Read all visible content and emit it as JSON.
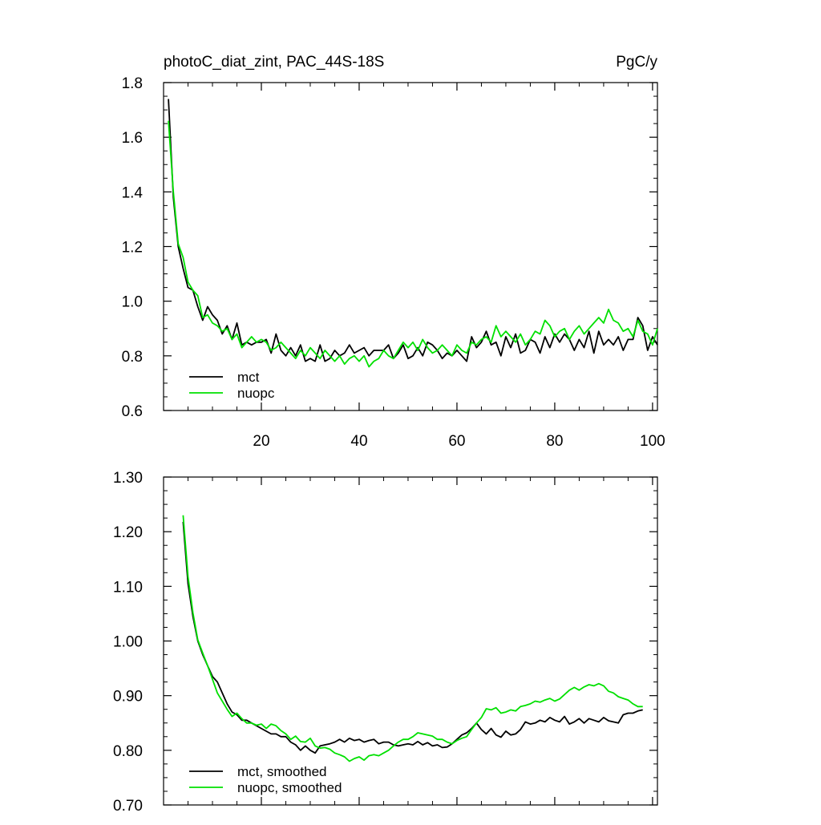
{
  "header": {
    "title": "photoC_diat_zint, PAC_44S-18S",
    "units": "PgC/y"
  },
  "colors": {
    "mct": "#000000",
    "nuopc": "#00e000"
  },
  "chart_data": [
    {
      "type": "line",
      "title": "photoC_diat_zint, PAC_44S-18S",
      "units": "PgC/y",
      "xlim": [
        0,
        101
      ],
      "ylim": [
        0.6,
        1.8
      ],
      "xticks": [
        20,
        40,
        60,
        80,
        100
      ],
      "xtick_labels": [
        "20",
        "40",
        "60",
        "80",
        "100"
      ],
      "yticks": [
        0.6,
        0.8,
        1.0,
        1.2,
        1.4,
        1.6,
        1.8
      ],
      "ytick_labels": [
        "0.6",
        "0.8",
        "1.0",
        "1.2",
        "1.4",
        "1.6",
        "1.8"
      ],
      "legend_position": "bottom-left",
      "series": [
        {
          "name": "mct",
          "color": "#000000",
          "x": [
            1,
            2,
            3,
            4,
            5,
            6,
            7,
            8,
            9,
            10,
            11,
            12,
            13,
            14,
            15,
            16,
            17,
            18,
            19,
            20,
            21,
            22,
            23,
            24,
            25,
            26,
            27,
            28,
            29,
            30,
            31,
            32,
            33,
            34,
            35,
            36,
            37,
            38,
            39,
            40,
            41,
            42,
            43,
            44,
            45,
            46,
            47,
            48,
            49,
            50,
            51,
            52,
            53,
            54,
            55,
            56,
            57,
            58,
            59,
            60,
            61,
            62,
            63,
            64,
            65,
            66,
            67,
            68,
            69,
            70,
            71,
            72,
            73,
            74,
            75,
            76,
            77,
            78,
            79,
            80,
            81,
            82,
            83,
            84,
            85,
            86,
            87,
            88,
            89,
            90,
            91,
            92,
            93,
            94,
            95,
            96,
            97,
            98,
            99,
            100,
            101
          ],
          "values": [
            1.74,
            1.38,
            1.2,
            1.12,
            1.05,
            1.04,
            0.98,
            0.93,
            0.98,
            0.95,
            0.93,
            0.88,
            0.91,
            0.86,
            0.92,
            0.84,
            0.85,
            0.84,
            0.85,
            0.85,
            0.86,
            0.81,
            0.88,
            0.82,
            0.8,
            0.83,
            0.8,
            0.84,
            0.78,
            0.79,
            0.78,
            0.84,
            0.78,
            0.79,
            0.82,
            0.8,
            0.81,
            0.84,
            0.81,
            0.82,
            0.83,
            0.8,
            0.82,
            0.82,
            0.82,
            0.84,
            0.79,
            0.81,
            0.84,
            0.79,
            0.8,
            0.83,
            0.8,
            0.85,
            0.84,
            0.82,
            0.79,
            0.81,
            0.8,
            0.82,
            0.8,
            0.78,
            0.87,
            0.83,
            0.85,
            0.89,
            0.84,
            0.85,
            0.8,
            0.87,
            0.83,
            0.88,
            0.81,
            0.82,
            0.86,
            0.85,
            0.81,
            0.87,
            0.83,
            0.88,
            0.85,
            0.88,
            0.86,
            0.82,
            0.86,
            0.83,
            0.89,
            0.81,
            0.89,
            0.84,
            0.86,
            0.84,
            0.87,
            0.82,
            0.86,
            0.86,
            0.94,
            0.91,
            0.82,
            0.87,
            0.84
          ]
        },
        {
          "name": "nuopc",
          "color": "#00e000",
          "x": [
            1,
            2,
            3,
            4,
            5,
            6,
            7,
            8,
            9,
            10,
            11,
            12,
            13,
            14,
            15,
            16,
            17,
            18,
            19,
            20,
            21,
            22,
            23,
            24,
            25,
            26,
            27,
            28,
            29,
            30,
            31,
            32,
            33,
            34,
            35,
            36,
            37,
            38,
            39,
            40,
            41,
            42,
            43,
            44,
            45,
            46,
            47,
            48,
            49,
            50,
            51,
            52,
            53,
            54,
            55,
            56,
            57,
            58,
            59,
            60,
            61,
            62,
            63,
            64,
            65,
            66,
            67,
            68,
            69,
            70,
            71,
            72,
            73,
            74,
            75,
            76,
            77,
            78,
            79,
            80,
            81,
            82,
            83,
            84,
            85,
            86,
            87,
            88,
            89,
            90,
            91,
            92,
            93,
            94,
            95,
            96,
            97,
            98,
            99,
            100,
            101
          ],
          "values": [
            1.66,
            1.4,
            1.21,
            1.16,
            1.07,
            1.04,
            1.02,
            0.94,
            0.95,
            0.92,
            0.91,
            0.89,
            0.9,
            0.86,
            0.88,
            0.83,
            0.85,
            0.87,
            0.85,
            0.86,
            0.85,
            0.82,
            0.83,
            0.85,
            0.83,
            0.81,
            0.79,
            0.82,
            0.8,
            0.83,
            0.81,
            0.79,
            0.82,
            0.8,
            0.78,
            0.8,
            0.77,
            0.79,
            0.8,
            0.78,
            0.8,
            0.76,
            0.78,
            0.79,
            0.82,
            0.8,
            0.79,
            0.82,
            0.85,
            0.83,
            0.85,
            0.82,
            0.86,
            0.83,
            0.81,
            0.82,
            0.84,
            0.82,
            0.8,
            0.84,
            0.82,
            0.81,
            0.85,
            0.84,
            0.86,
            0.87,
            0.85,
            0.91,
            0.87,
            0.89,
            0.87,
            0.85,
            0.88,
            0.84,
            0.86,
            0.89,
            0.88,
            0.93,
            0.91,
            0.87,
            0.89,
            0.9,
            0.86,
            0.89,
            0.91,
            0.88,
            0.9,
            0.92,
            0.94,
            0.92,
            0.97,
            0.93,
            0.92,
            0.89,
            0.9,
            0.87,
            0.93,
            0.89,
            0.88,
            0.84,
            0.9
          ]
        }
      ]
    },
    {
      "type": "line",
      "title": "",
      "xlim": [
        0,
        101
      ],
      "ylim": [
        0.7,
        1.3
      ],
      "xticks": [
        20,
        40,
        60,
        80,
        100
      ],
      "xtick_labels": [],
      "yticks": [
        0.7,
        0.8,
        0.9,
        1.0,
        1.1,
        1.2,
        1.3
      ],
      "ytick_labels": [
        "0.70",
        "0.80",
        "0.90",
        "1.00",
        "1.10",
        "1.20",
        "1.30"
      ],
      "legend_position": "bottom-left",
      "series": [
        {
          "name": "mct, smoothed",
          "color": "#000000",
          "x": [
            4,
            5,
            6,
            7,
            8,
            9,
            10,
            11,
            12,
            13,
            14,
            15,
            16,
            17,
            18,
            19,
            20,
            21,
            22,
            23,
            24,
            25,
            26,
            27,
            28,
            29,
            30,
            31,
            32,
            33,
            34,
            35,
            36,
            37,
            38,
            39,
            40,
            41,
            42,
            43,
            44,
            45,
            46,
            47,
            48,
            49,
            50,
            51,
            52,
            53,
            54,
            55,
            56,
            57,
            58,
            59,
            60,
            61,
            62,
            63,
            64,
            65,
            66,
            67,
            68,
            69,
            70,
            71,
            72,
            73,
            74,
            75,
            76,
            77,
            78,
            79,
            80,
            81,
            82,
            83,
            84,
            85,
            86,
            87,
            88,
            89,
            90,
            91,
            92,
            93,
            94,
            95,
            96,
            97,
            98
          ],
          "values": [
            1.218,
            1.105,
            1.045,
            1.0,
            0.975,
            0.955,
            0.935,
            0.925,
            0.905,
            0.885,
            0.87,
            0.865,
            0.855,
            0.855,
            0.85,
            0.845,
            0.84,
            0.835,
            0.83,
            0.83,
            0.825,
            0.825,
            0.815,
            0.81,
            0.8,
            0.808,
            0.8,
            0.795,
            0.808,
            0.81,
            0.812,
            0.815,
            0.82,
            0.815,
            0.822,
            0.818,
            0.82,
            0.815,
            0.818,
            0.82,
            0.812,
            0.815,
            0.815,
            0.81,
            0.808,
            0.81,
            0.812,
            0.81,
            0.816,
            0.81,
            0.814,
            0.808,
            0.81,
            0.805,
            0.806,
            0.812,
            0.82,
            0.828,
            0.832,
            0.84,
            0.85,
            0.838,
            0.83,
            0.84,
            0.828,
            0.824,
            0.835,
            0.828,
            0.83,
            0.838,
            0.852,
            0.848,
            0.85,
            0.855,
            0.852,
            0.86,
            0.855,
            0.852,
            0.862,
            0.848,
            0.852,
            0.858,
            0.85,
            0.858,
            0.855,
            0.852,
            0.86,
            0.854,
            0.852,
            0.85,
            0.865,
            0.868,
            0.868,
            0.872,
            0.874
          ]
        },
        {
          "name": "nuopc, smoothed",
          "color": "#00e000",
          "x": [
            4,
            5,
            6,
            7,
            8,
            9,
            10,
            11,
            12,
            13,
            14,
            15,
            16,
            17,
            18,
            19,
            20,
            21,
            22,
            23,
            24,
            25,
            26,
            27,
            28,
            29,
            30,
            31,
            32,
            33,
            34,
            35,
            36,
            37,
            38,
            39,
            40,
            41,
            42,
            43,
            44,
            45,
            46,
            47,
            48,
            49,
            50,
            51,
            52,
            53,
            54,
            55,
            56,
            57,
            58,
            59,
            60,
            61,
            62,
            63,
            64,
            65,
            66,
            67,
            68,
            69,
            70,
            71,
            72,
            73,
            74,
            75,
            76,
            77,
            78,
            79,
            80,
            81,
            82,
            83,
            84,
            85,
            86,
            87,
            88,
            89,
            90,
            91,
            92,
            93,
            94,
            95,
            96,
            97,
            98
          ],
          "values": [
            1.23,
            1.118,
            1.052,
            1.002,
            0.978,
            0.955,
            0.93,
            0.905,
            0.89,
            0.875,
            0.862,
            0.868,
            0.858,
            0.85,
            0.85,
            0.846,
            0.848,
            0.84,
            0.848,
            0.845,
            0.836,
            0.83,
            0.82,
            0.826,
            0.816,
            0.815,
            0.822,
            0.808,
            0.804,
            0.805,
            0.802,
            0.795,
            0.792,
            0.788,
            0.78,
            0.785,
            0.788,
            0.782,
            0.79,
            0.792,
            0.79,
            0.795,
            0.8,
            0.808,
            0.815,
            0.82,
            0.82,
            0.825,
            0.832,
            0.83,
            0.828,
            0.826,
            0.82,
            0.82,
            0.815,
            0.812,
            0.818,
            0.822,
            0.825,
            0.838,
            0.85,
            0.86,
            0.876,
            0.874,
            0.878,
            0.868,
            0.87,
            0.874,
            0.872,
            0.88,
            0.882,
            0.885,
            0.89,
            0.888,
            0.892,
            0.895,
            0.89,
            0.894,
            0.902,
            0.91,
            0.915,
            0.91,
            0.916,
            0.92,
            0.918,
            0.922,
            0.918,
            0.908,
            0.905,
            0.898,
            0.895,
            0.892,
            0.885,
            0.88,
            0.88
          ]
        }
      ]
    }
  ]
}
